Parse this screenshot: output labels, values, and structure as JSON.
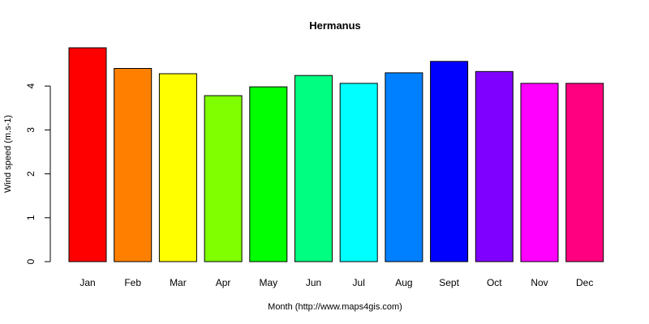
{
  "chart_data": {
    "type": "bar",
    "title": "Hermanus",
    "xlabel": "Month (http://www.maps4gis.com)",
    "ylabel": "Wind speed (m.s-1)",
    "ylim": [
      0,
      4.9
    ],
    "yticks": [
      0,
      1,
      2,
      3,
      4
    ],
    "grid": false,
    "legend": "none",
    "categories": [
      "Jan",
      "Feb",
      "Mar",
      "Apr",
      "May",
      "Jun",
      "Jul",
      "Aug",
      "Sept",
      "Oct",
      "Nov",
      "Dec"
    ],
    "values": [
      4.87,
      4.4,
      4.28,
      3.78,
      3.98,
      4.24,
      4.06,
      4.3,
      4.56,
      4.33,
      4.06,
      4.06
    ],
    "colors": [
      "#FF0000",
      "#FF8000",
      "#FFFF00",
      "#80FF00",
      "#00FF00",
      "#00FF80",
      "#00FFFF",
      "#0080FF",
      "#0000FF",
      "#8000FF",
      "#FF00FF",
      "#FF0080"
    ]
  }
}
